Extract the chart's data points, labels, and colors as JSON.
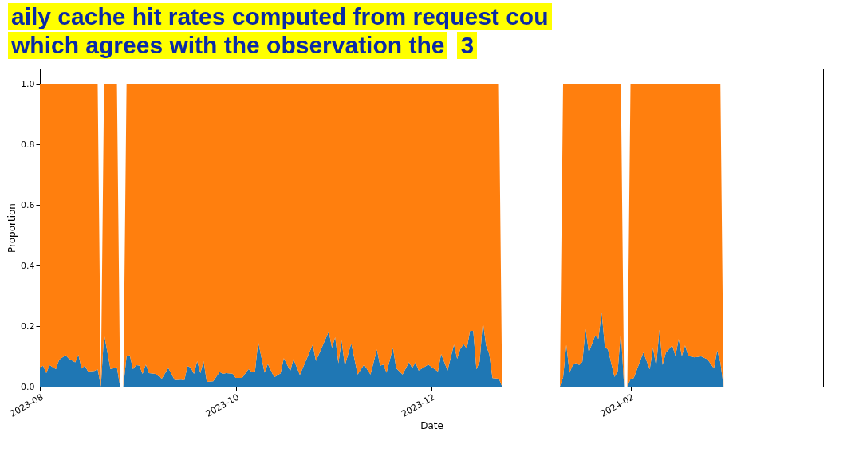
{
  "chart_data": {
    "type": "area",
    "stacked": true,
    "xlabel": "Date",
    "ylabel": "Proportion",
    "annotations": [
      "aily cache hit rates computed from request cou",
      "which agrees with the observation the",
      "3"
    ],
    "x": [
      "2023-08-01",
      "2023-08-02",
      "2023-08-03",
      "2023-08-04",
      "2023-08-06",
      "2023-08-07",
      "2023-08-09",
      "2023-08-10",
      "2023-08-12",
      "2023-08-13",
      "2023-08-14",
      "2023-08-15",
      "2023-08-16",
      "2023-08-18",
      "2023-08-19",
      "2023-08-20",
      "2023-08-21",
      "2023-08-23",
      "2023-08-25",
      "2023-08-26",
      "2023-08-27",
      "2023-08-28",
      "2023-08-29",
      "2023-08-30",
      "2023-08-31",
      "2023-09-01",
      "2023-09-02",
      "2023-09-03",
      "2023-09-04",
      "2023-09-06",
      "2023-09-08",
      "2023-09-10",
      "2023-09-12",
      "2023-09-14",
      "2023-09-15",
      "2023-09-16",
      "2023-09-17",
      "2023-09-18",
      "2023-09-19",
      "2023-09-20",
      "2023-09-21",
      "2023-09-22",
      "2023-09-24",
      "2023-09-26",
      "2023-09-27",
      "2023-09-28",
      "2023-09-30",
      "2023-10-01",
      "2023-10-03",
      "2023-10-05",
      "2023-10-06",
      "2023-10-07",
      "2023-10-08",
      "2023-10-10",
      "2023-10-11",
      "2023-10-13",
      "2023-10-15",
      "2023-10-16",
      "2023-10-18",
      "2023-10-19",
      "2023-10-21",
      "2023-10-25",
      "2023-10-26",
      "2023-10-28",
      "2023-10-30",
      "2023-10-31",
      "2023-11-01",
      "2023-11-02",
      "2023-11-03",
      "2023-11-04",
      "2023-11-06",
      "2023-11-08",
      "2023-11-10",
      "2023-11-12",
      "2023-11-14",
      "2023-11-15",
      "2023-11-16",
      "2023-11-17",
      "2023-11-19",
      "2023-11-20",
      "2023-11-22",
      "2023-11-24",
      "2023-11-25",
      "2023-11-26",
      "2023-11-27",
      "2023-11-30",
      "2023-12-03",
      "2023-12-04",
      "2023-12-06",
      "2023-12-08",
      "2023-12-09",
      "2023-12-10",
      "2023-12-11",
      "2023-12-12",
      "2023-12-13",
      "2023-12-14",
      "2023-12-15",
      "2023-12-16",
      "2023-12-17",
      "2023-12-18",
      "2023-12-19",
      "2023-12-20",
      "2023-12-22",
      "2023-12-23",
      "2024-01-10",
      "2024-01-11",
      "2024-01-12",
      "2024-01-13",
      "2024-01-14",
      "2024-01-15",
      "2024-01-16",
      "2024-01-17",
      "2024-01-18",
      "2024-01-19",
      "2024-01-21",
      "2024-01-22",
      "2024-01-23",
      "2024-01-24",
      "2024-01-25",
      "2024-01-27",
      "2024-01-28",
      "2024-01-29",
      "2024-01-30",
      "2024-01-31",
      "2024-02-01",
      "2024-02-02",
      "2024-02-05",
      "2024-02-07",
      "2024-02-08",
      "2024-02-09",
      "2024-02-10",
      "2024-02-11",
      "2024-02-12",
      "2024-02-14",
      "2024-02-15",
      "2024-02-16",
      "2024-02-17",
      "2024-02-18",
      "2024-02-19",
      "2024-02-21",
      "2024-02-23",
      "2024-02-25",
      "2024-02-27",
      "2024-02-28",
      "2024-02-29",
      "2024-03-01",
      "2024-04-01"
    ],
    "series": [
      {
        "color": "#1f77b4",
        "values": [
          0.063,
          0.069,
          0.045,
          0.071,
          0.058,
          0.089,
          0.104,
          0.093,
          0.08,
          0.105,
          0.06,
          0.07,
          0.05,
          0.052,
          0.058,
          0,
          0.173,
          0.058,
          0.064,
          0,
          0,
          0.1,
          0.104,
          0.058,
          0.071,
          0.07,
          0.042,
          0.073,
          0.045,
          0.042,
          0.026,
          0.062,
          0.022,
          0.023,
          0.021,
          0.068,
          0.063,
          0.042,
          0.084,
          0.045,
          0.084,
          0.016,
          0.018,
          0.049,
          0.042,
          0.045,
          0.043,
          0.029,
          0.029,
          0.058,
          0.049,
          0.048,
          0.149,
          0.046,
          0.075,
          0.031,
          0.044,
          0.094,
          0.052,
          0.091,
          0.039,
          0.139,
          0.085,
          0.133,
          0.182,
          0.128,
          0.163,
          0.077,
          0.153,
          0.069,
          0.143,
          0.04,
          0.073,
          0.04,
          0.123,
          0.069,
          0.073,
          0.046,
          0.128,
          0.061,
          0.04,
          0.081,
          0.061,
          0.08,
          0.053,
          0.073,
          0.05,
          0.108,
          0.053,
          0.139,
          0.092,
          0.125,
          0.141,
          0.125,
          0.184,
          0.184,
          0.057,
          0.082,
          0.215,
          0.136,
          0.107,
          0.028,
          0.026,
          0,
          0,
          0.03,
          0.138,
          0.046,
          0.071,
          0.078,
          0.072,
          0.082,
          0.19,
          0.113,
          0.169,
          0.158,
          0.246,
          0.132,
          0.122,
          0.032,
          0.05,
          0.184,
          0,
          0,
          0.025,
          0.028,
          0.113,
          0.057,
          0.128,
          0.067,
          0.188,
          0.072,
          0.112,
          0.136,
          0.101,
          0.157,
          0.101,
          0.136,
          0.101,
          0.097,
          0.1,
          0.09,
          0.06,
          0.12,
          0.08,
          0,
          0
        ]
      },
      {
        "color": "#ff7f0e",
        "values": [
          0.937,
          0.931,
          0.955,
          0.929,
          0.942,
          0.911,
          0.896,
          0.907,
          0.92,
          0.895,
          0.94,
          0.93,
          0.95,
          0.948,
          0.942,
          0,
          0.827,
          0.942,
          0.936,
          0,
          0,
          0.9,
          0.896,
          0.942,
          0.929,
          0.93,
          0.958,
          0.927,
          0.955,
          0.958,
          0.974,
          0.938,
          0.978,
          0.977,
          0.979,
          0.932,
          0.937,
          0.958,
          0.916,
          0.955,
          0.916,
          0.984,
          0.982,
          0.951,
          0.958,
          0.955,
          0.957,
          0.971,
          0.971,
          0.942,
          0.951,
          0.952,
          0.851,
          0.954,
          0.925,
          0.969,
          0.956,
          0.906,
          0.948,
          0.909,
          0.961,
          0.861,
          0.915,
          0.867,
          0.818,
          0.872,
          0.837,
          0.923,
          0.847,
          0.931,
          0.857,
          0.96,
          0.927,
          0.96,
          0.877,
          0.931,
          0.927,
          0.954,
          0.872,
          0.939,
          0.96,
          0.919,
          0.939,
          0.92,
          0.947,
          0.927,
          0.95,
          0.892,
          0.947,
          0.861,
          0.908,
          0.875,
          0.859,
          0.875,
          0.816,
          0.816,
          0.943,
          0.918,
          0.785,
          0.864,
          0.893,
          0.972,
          0.974,
          0,
          0,
          0.97,
          0.862,
          0.954,
          0.929,
          0.922,
          0.928,
          0.918,
          0.81,
          0.887,
          0.831,
          0.842,
          0.754,
          0.868,
          0.878,
          0.968,
          0.95,
          0.816,
          0,
          0,
          0.975,
          0.972,
          0.887,
          0.943,
          0.872,
          0.933,
          0.812,
          0.928,
          0.888,
          0.864,
          0.899,
          0.843,
          0.899,
          0.864,
          0.899,
          0.903,
          0.9,
          0.91,
          0.94,
          0.88,
          0.92,
          0,
          0
        ]
      }
    ],
    "xlim": [
      "2023-08-01",
      "2024-04-01"
    ],
    "xticks": [
      {
        "value": "2023-08-01",
        "label": "2023-08"
      },
      {
        "value": "2023-10-01",
        "label": "2023-10"
      },
      {
        "value": "2023-12-01",
        "label": "2023-12"
      },
      {
        "value": "2024-02-01",
        "label": "2024-02"
      }
    ],
    "ylim": [
      0,
      1.05
    ],
    "yticks": [
      {
        "value": 0,
        "label": "0.0"
      },
      {
        "value": 0.2,
        "label": "0.2"
      },
      {
        "value": 0.4,
        "label": "0.4"
      },
      {
        "value": 0.6,
        "label": "0.6"
      },
      {
        "value": 0.8,
        "label": "0.8"
      },
      {
        "value": 1,
        "label": "1.0"
      }
    ],
    "grid": false,
    "legend": false,
    "marker": "none"
  }
}
